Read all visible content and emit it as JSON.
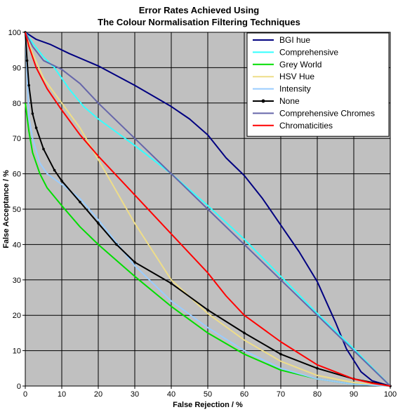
{
  "chart_data": {
    "type": "line",
    "title": [
      "Error Rates Achieved Using",
      "The Colour Normalisation Filtering Techniques"
    ],
    "xlabel": "False Rejection / %",
    "ylabel": "False Acceptance / %",
    "xlim": [
      0,
      100
    ],
    "ylim": [
      0,
      100
    ],
    "xticks": [
      0,
      10,
      20,
      30,
      40,
      50,
      60,
      70,
      80,
      90,
      100
    ],
    "yticks": [
      0,
      10,
      20,
      30,
      40,
      50,
      60,
      70,
      80,
      90,
      100
    ],
    "grid": true,
    "plot_background": "#c0c0c0",
    "legend_position": "top-right",
    "series": [
      {
        "name": "BGI hue",
        "color": "#000080",
        "marker": "none",
        "x": [
          0,
          3,
          7,
          12,
          20,
          30,
          40,
          45,
          50,
          55,
          60,
          65,
          70,
          75,
          80,
          85,
          88,
          92,
          95,
          100
        ],
        "y": [
          100,
          98,
          96.5,
          94,
          90.5,
          85,
          79,
          75.5,
          71,
          64.5,
          59.5,
          53,
          45.5,
          38,
          29.5,
          18,
          10.5,
          4,
          1.5,
          0
        ]
      },
      {
        "name": "Comprehensive",
        "color": "#33ffff",
        "marker": "none",
        "x": [
          0,
          2,
          5,
          8,
          12,
          16,
          20,
          30,
          40,
          50,
          60,
          70,
          80,
          90,
          100
        ],
        "y": [
          100,
          97,
          93,
          90,
          84,
          79,
          75.5,
          68,
          60,
          51,
          41.5,
          31,
          20.5,
          10.5,
          0
        ]
      },
      {
        "name": "Grey World",
        "color": "#00dd00",
        "marker": "none",
        "x": [
          0,
          1,
          2,
          4,
          6,
          10,
          15,
          20,
          30,
          40,
          50,
          60,
          70,
          80,
          90,
          100
        ],
        "y": [
          80,
          72,
          66,
          60,
          56,
          51,
          45,
          40,
          31,
          22.5,
          15,
          9,
          4.5,
          2,
          0.5,
          0
        ]
      },
      {
        "name": "HSV Hue",
        "color": "#eedd88",
        "marker": "none",
        "x": [
          0,
          2,
          5,
          10,
          15,
          20,
          25,
          30,
          40,
          50,
          60,
          70,
          80,
          90,
          100
        ],
        "y": [
          100,
          94,
          87,
          80,
          73,
          64,
          55,
          46,
          30,
          20.5,
          13,
          7,
          3,
          1,
          0
        ]
      },
      {
        "name": "Intensity",
        "color": "#99ccff",
        "marker": "none",
        "x": [
          0,
          1,
          2,
          4,
          6,
          10,
          15,
          20,
          30,
          40,
          50,
          60,
          70,
          80,
          90,
          100
        ],
        "y": [
          100,
          76,
          70,
          63,
          60,
          57,
          53,
          47,
          34,
          24,
          16.5,
          10,
          5,
          2,
          0.5,
          0
        ]
      },
      {
        "name": "None",
        "color": "#000000",
        "marker": "dot",
        "x": [
          0,
          0.5,
          1,
          2,
          3,
          5,
          8,
          10,
          15,
          20,
          25,
          30,
          40,
          50,
          60,
          70,
          80,
          90,
          100
        ],
        "y": [
          100,
          92,
          85,
          77,
          73,
          67,
          61,
          58,
          52,
          46,
          40,
          35,
          29,
          21.5,
          15,
          9,
          5,
          2,
          0
        ]
      },
      {
        "name": "Comprehensive Chromes",
        "color": "#6666aa",
        "marker": "none",
        "x": [
          0,
          2,
          5,
          10,
          15,
          20,
          30,
          40,
          50,
          60,
          70,
          80,
          90,
          100
        ],
        "y": [
          100,
          96,
          92,
          89.5,
          85.5,
          80,
          70,
          60,
          50,
          40,
          30,
          20,
          10,
          0
        ]
      },
      {
        "name": "Chromaticities",
        "color": "#ff0000",
        "marker": "none",
        "x": [
          0,
          1,
          3,
          6,
          10,
          15,
          20,
          30,
          40,
          50,
          55,
          60,
          70,
          80,
          90,
          95,
          100
        ],
        "y": [
          100,
          96,
          90,
          84,
          78,
          71,
          65,
          54,
          43,
          32,
          25.5,
          20,
          12.5,
          6,
          2,
          0.8,
          0
        ]
      }
    ]
  }
}
